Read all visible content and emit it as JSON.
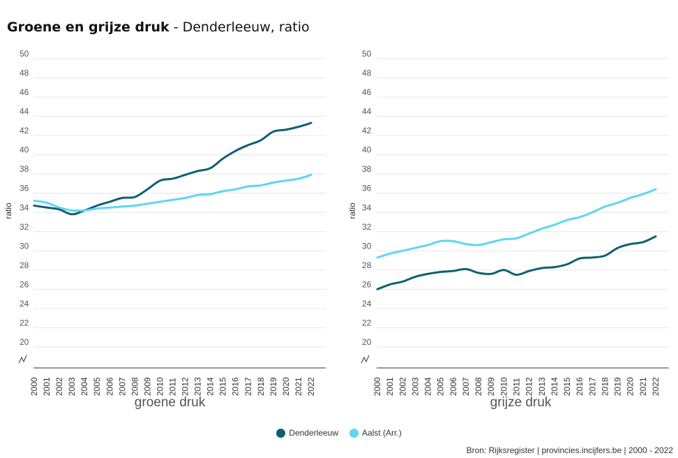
{
  "title": {
    "bold": "Groene en grijze druk",
    "rest": " - Denderleeuw, ratio"
  },
  "colors": {
    "series_1": "#0e5f73",
    "series_2": "#5dd6f2"
  },
  "legend": [
    {
      "label": "Denderleeuw",
      "color": "#0e5f73"
    },
    {
      "label": "Aalst (Arr.)",
      "color": "#5dd6f2"
    }
  ],
  "source": "Bron: Rijksregister | provincies.incijfers.be | 2000 - 2022",
  "chart_data": [
    {
      "type": "line",
      "xlabel": "groene druk",
      "ylabel": "ratio",
      "ylim": [
        20,
        50
      ],
      "axis_break": true,
      "grid": true,
      "legend_position": "bottom",
      "yticks": [
        "20",
        "22",
        "24",
        "26",
        "28",
        "30",
        "32",
        "34",
        "36",
        "38",
        "40",
        "42",
        "44",
        "46",
        "48",
        "50"
      ],
      "categories": [
        "2000",
        "2001",
        "2002",
        "2003",
        "2004",
        "2005",
        "2006",
        "2007",
        "2008",
        "2009",
        "2010",
        "2011",
        "2012",
        "2013",
        "2014",
        "2015",
        "2016",
        "2017",
        "2018",
        "2019",
        "2020",
        "2021",
        "2022"
      ],
      "series": [
        {
          "name": "Denderleeuw",
          "values": [
            34.2,
            34.0,
            33.8,
            33.3,
            33.7,
            34.2,
            34.6,
            35.0,
            35.1,
            35.9,
            36.8,
            37.0,
            37.4,
            37.8,
            38.1,
            39.1,
            39.9,
            40.5,
            41.0,
            41.9,
            42.1,
            42.4,
            42.8
          ]
        },
        {
          "name": "Aalst (Arr.)",
          "values": [
            34.7,
            34.5,
            34.0,
            33.7,
            33.7,
            33.9,
            34.0,
            34.1,
            34.2,
            34.4,
            34.6,
            34.8,
            35.0,
            35.3,
            35.4,
            35.7,
            35.9,
            36.2,
            36.3,
            36.6,
            36.8,
            37.0,
            37.4
          ]
        }
      ]
    },
    {
      "type": "line",
      "xlabel": "grijze druk",
      "ylabel": "ratio",
      "ylim": [
        20,
        50
      ],
      "axis_break": true,
      "grid": true,
      "legend_position": "bottom",
      "yticks": [
        "20",
        "22",
        "24",
        "26",
        "28",
        "30",
        "32",
        "34",
        "36",
        "38",
        "40",
        "42",
        "44",
        "46",
        "48",
        "50"
      ],
      "categories": [
        "2000",
        "2001",
        "2002",
        "2003",
        "2004",
        "2005",
        "2006",
        "2007",
        "2008",
        "2009",
        "2010",
        "2011",
        "2012",
        "2013",
        "2014",
        "2015",
        "2016",
        "2017",
        "2018",
        "2019",
        "2020",
        "2021",
        "2022"
      ],
      "series": [
        {
          "name": "Denderleeuw",
          "values": [
            25.5,
            26.0,
            26.3,
            26.8,
            27.1,
            27.3,
            27.4,
            27.6,
            27.2,
            27.1,
            27.5,
            27.0,
            27.4,
            27.7,
            27.8,
            28.1,
            28.7,
            28.8,
            29.0,
            29.8,
            30.2,
            30.4,
            31.0
          ]
        },
        {
          "name": "Aalst (Arr.)",
          "values": [
            28.8,
            29.2,
            29.5,
            29.8,
            30.1,
            30.5,
            30.5,
            30.2,
            30.1,
            30.4,
            30.7,
            30.8,
            31.3,
            31.8,
            32.2,
            32.7,
            33.0,
            33.5,
            34.1,
            34.5,
            35.0,
            35.4,
            35.9
          ]
        }
      ]
    }
  ]
}
